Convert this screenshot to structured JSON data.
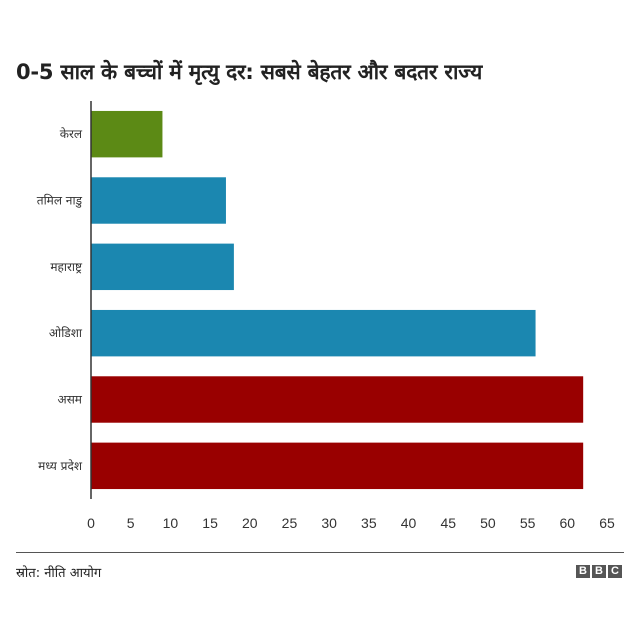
{
  "title": "0-5 साल के बच्चों में मृत्यु दर: सबसे बेहतर और बदतर राज्य",
  "footer": {
    "source": "स्रोत: नीति आयोग",
    "logo_letters": [
      "B",
      "B",
      "C"
    ]
  },
  "colors": {
    "green": "#5c8a15",
    "blue": "#1b87b0",
    "red": "#990000"
  },
  "chart_data": {
    "type": "bar",
    "orientation": "horizontal",
    "categories": [
      "केरल",
      "तमिल नाडु",
      "महाराष्ट्र",
      "ओडिशा",
      "असम",
      "मध्य प्रदेश"
    ],
    "values": [
      9,
      17,
      18,
      56,
      62,
      62
    ],
    "bar_colors": [
      "#5c8a15",
      "#1b87b0",
      "#1b87b0",
      "#1b87b0",
      "#990000",
      "#990000"
    ],
    "title": "0-5 साल के बच्चों में मृत्यु दर: सबसे बेहतर और बदतर राज्य",
    "xlim": [
      0,
      65
    ],
    "xticks": [
      0,
      5,
      10,
      15,
      20,
      25,
      30,
      35,
      40,
      45,
      50,
      55,
      60,
      65
    ],
    "grid": false
  }
}
